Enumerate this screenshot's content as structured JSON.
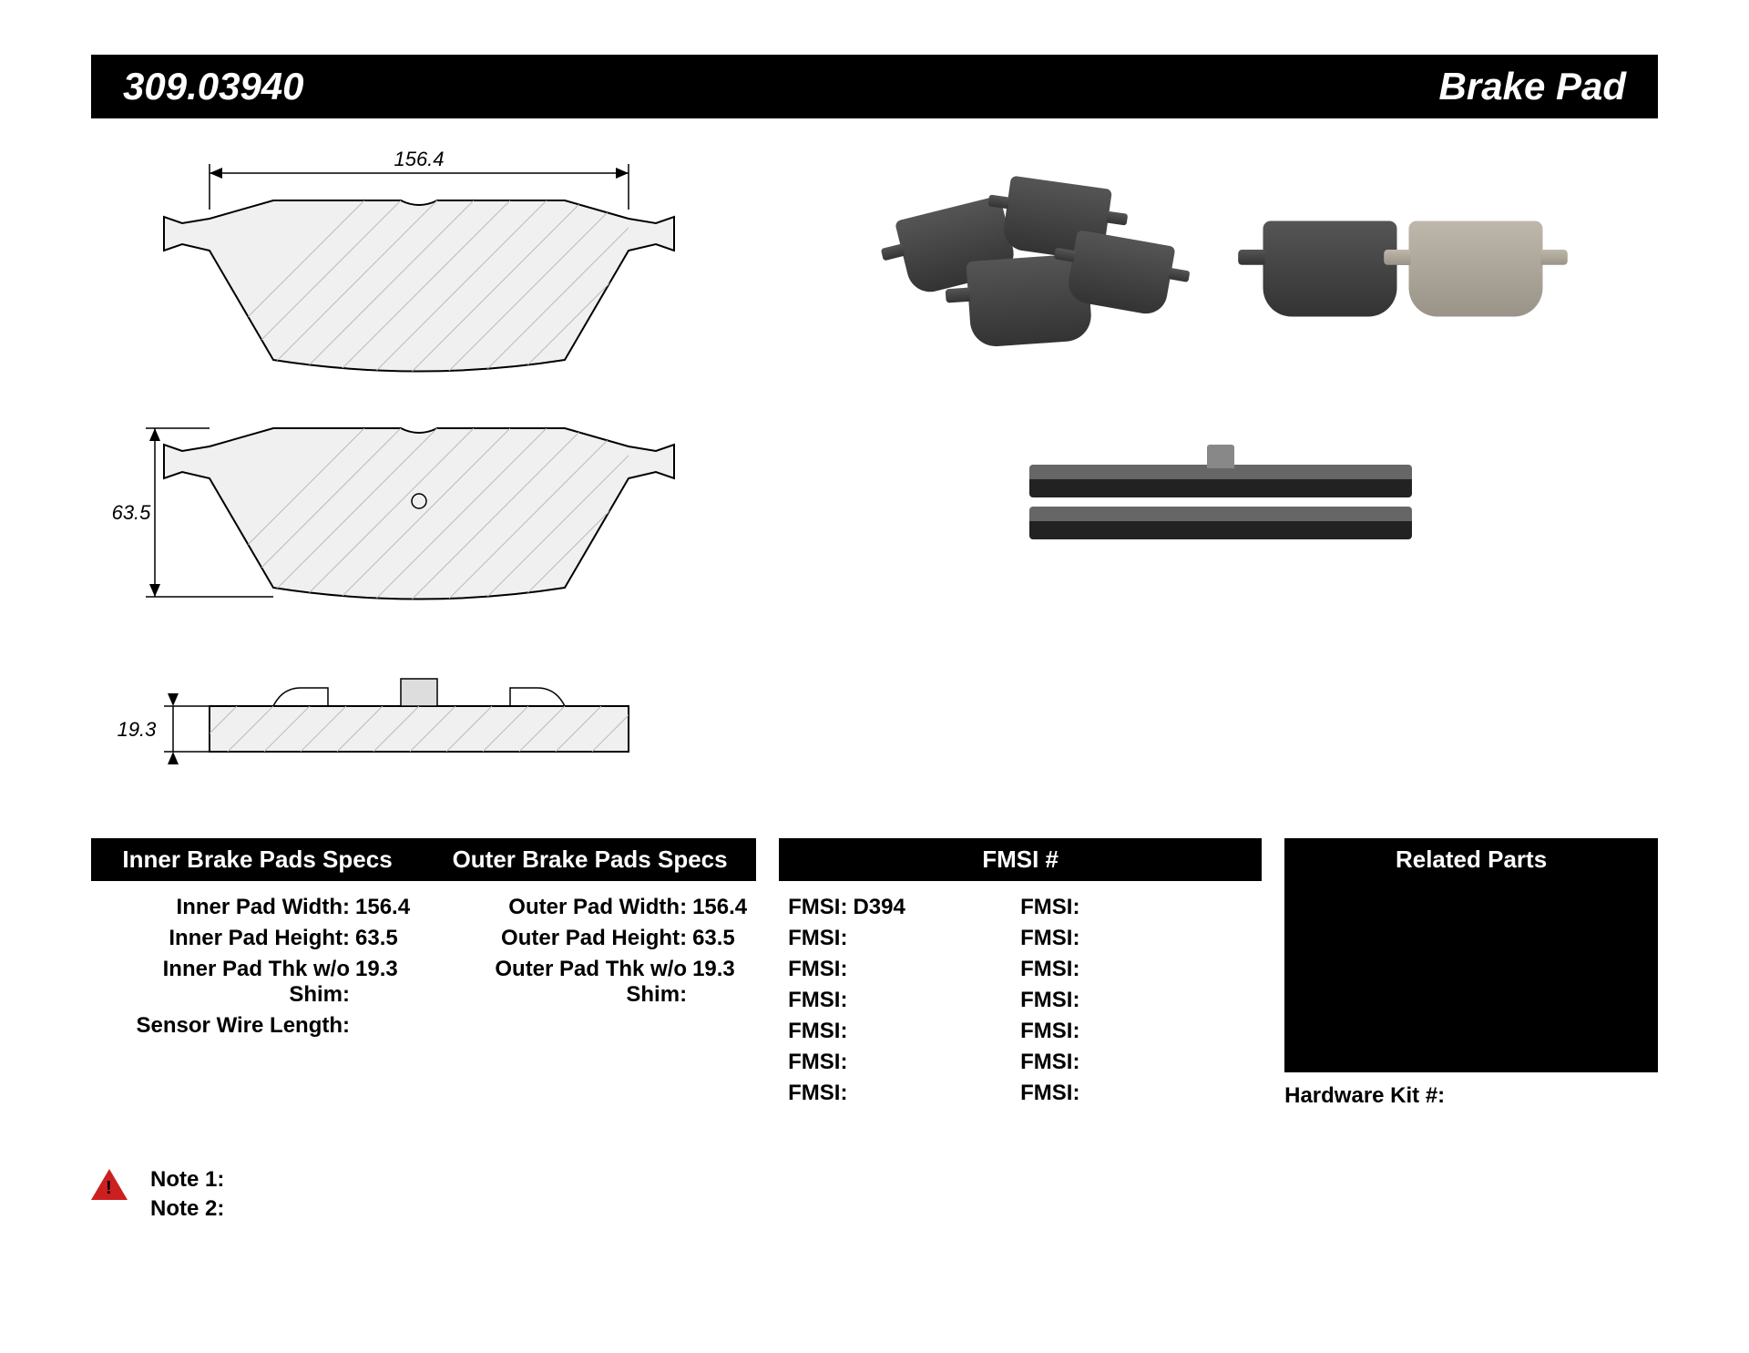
{
  "header": {
    "part_number": "309.03940",
    "part_type": "Brake Pad"
  },
  "dimensions": {
    "width": "156.4",
    "height": "63.5",
    "thickness": "19.3"
  },
  "specs": {
    "inner_header": "Inner Brake Pads Specs",
    "outer_header": "Outer Brake Pads Specs",
    "inner": {
      "width_label": "Inner Pad Width:",
      "width_value": "156.4",
      "height_label": "Inner Pad Height:",
      "height_value": "63.5",
      "thk_label": "Inner Pad Thk w/o Shim:",
      "thk_value": "19.3",
      "sensor_label": "Sensor Wire Length:",
      "sensor_value": ""
    },
    "outer": {
      "width_label": "Outer Pad Width:",
      "width_value": "156.4",
      "height_label": "Outer Pad Height:",
      "height_value": "63.5",
      "thk_label": "Outer Pad Thk w/o Shim:",
      "thk_value": "19.3"
    }
  },
  "fmsi": {
    "header": "FMSI #",
    "label": "FMSI:",
    "col1": [
      "D394",
      "",
      "",
      "",
      "",
      "",
      ""
    ],
    "col2": [
      "",
      "",
      "",
      "",
      "",
      "",
      ""
    ]
  },
  "related": {
    "header": "Related Parts",
    "hw_label": "Hardware Kit #:",
    "hw_value": ""
  },
  "notes": {
    "note1_label": "Note 1:",
    "note1_value": "",
    "note2_label": "Note 2:",
    "note2_value": ""
  },
  "colors": {
    "header_bg": "#000000",
    "header_fg": "#ffffff",
    "warning": "#cc2020"
  }
}
